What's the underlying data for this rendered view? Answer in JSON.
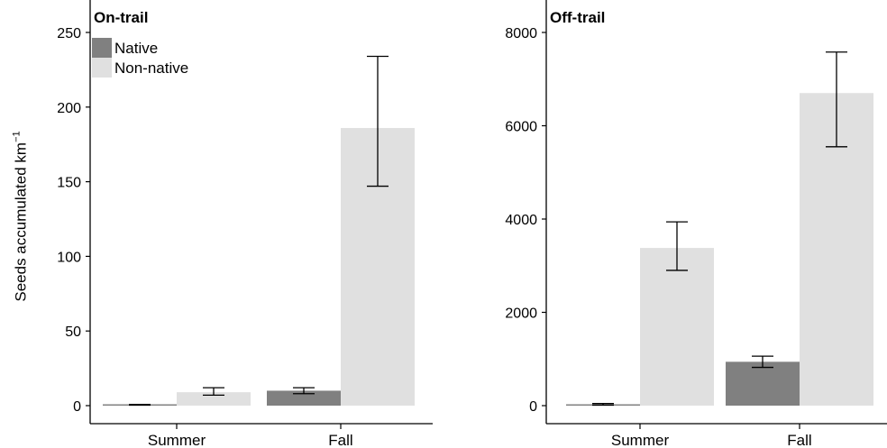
{
  "chart_data": [
    {
      "type": "bar",
      "title": "On-trail",
      "categories": [
        "Summer",
        "Fall"
      ],
      "series": [
        {
          "name": "Native",
          "color": "#808080",
          "values": [
            0.5,
            10
          ],
          "error_low": [
            0.3,
            8
          ],
          "error_high": [
            0.8,
            12
          ]
        },
        {
          "name": "Non-native",
          "color": "#e0e0e0",
          "values": [
            9,
            186
          ],
          "error_low": [
            7,
            147
          ],
          "error_high": [
            12,
            234
          ]
        }
      ],
      "ylim": [
        0,
        255
      ],
      "yticks": [
        0,
        50,
        100,
        150,
        200,
        250
      ],
      "ylabel": "Seeds accumulated  km",
      "ylabel_sup": "−1",
      "xlabel": "",
      "legend": "top-left",
      "grid": false
    },
    {
      "type": "bar",
      "title": "Off-trail",
      "categories": [
        "Summer",
        "Fall"
      ],
      "series": [
        {
          "name": "Native",
          "color": "#808080",
          "values": [
            25,
            940
          ],
          "error_low": [
            10,
            820
          ],
          "error_high": [
            45,
            1060
          ]
        },
        {
          "name": "Non-native",
          "color": "#e0e0e0",
          "values": [
            3380,
            6700
          ],
          "error_low": [
            2900,
            5550
          ],
          "error_high": [
            3940,
            7580
          ]
        }
      ],
      "ylim": [
        0,
        8100
      ],
      "yticks": [
        0,
        2000,
        4000,
        6000,
        8000
      ],
      "xlabel": "",
      "ylabel": "",
      "grid": false
    }
  ]
}
